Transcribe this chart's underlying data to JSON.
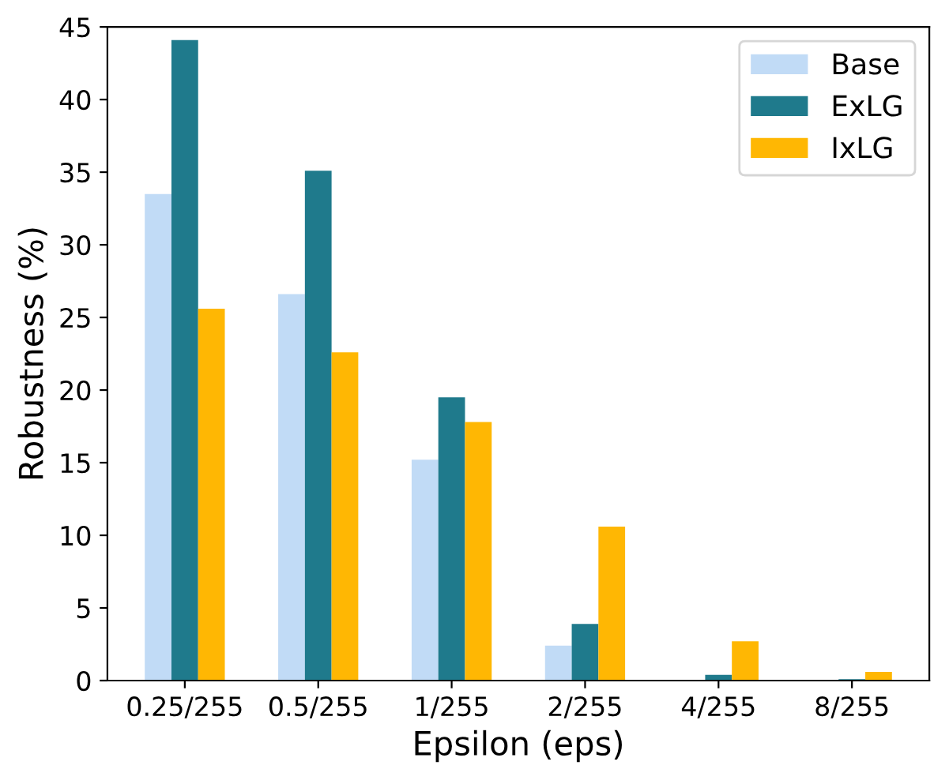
{
  "chart_data": {
    "type": "bar",
    "xlabel": "Epsilon (eps)",
    "ylabel": "Robustness (%)",
    "categories": [
      "0.25/255",
      "0.5/255",
      "1/255",
      "2/255",
      "4/255",
      "8/255"
    ],
    "series": [
      {
        "name": "Base",
        "color": "#c1dbf6",
        "values": [
          33.5,
          26.6,
          15.2,
          2.4,
          null,
          null
        ]
      },
      {
        "name": "ExLG",
        "color": "#1f7a8c",
        "values": [
          44.1,
          35.1,
          19.5,
          3.9,
          0.4,
          0.1
        ]
      },
      {
        "name": "IxLG",
        "color": "#ffb703",
        "values": [
          25.6,
          22.6,
          17.8,
          10.6,
          2.7,
          0.6
        ]
      }
    ],
    "ylim": [
      0,
      45
    ],
    "yticks": [
      0,
      5,
      10,
      15,
      20,
      25,
      30,
      35,
      40,
      45
    ],
    "grid": false,
    "legend": "top right"
  }
}
